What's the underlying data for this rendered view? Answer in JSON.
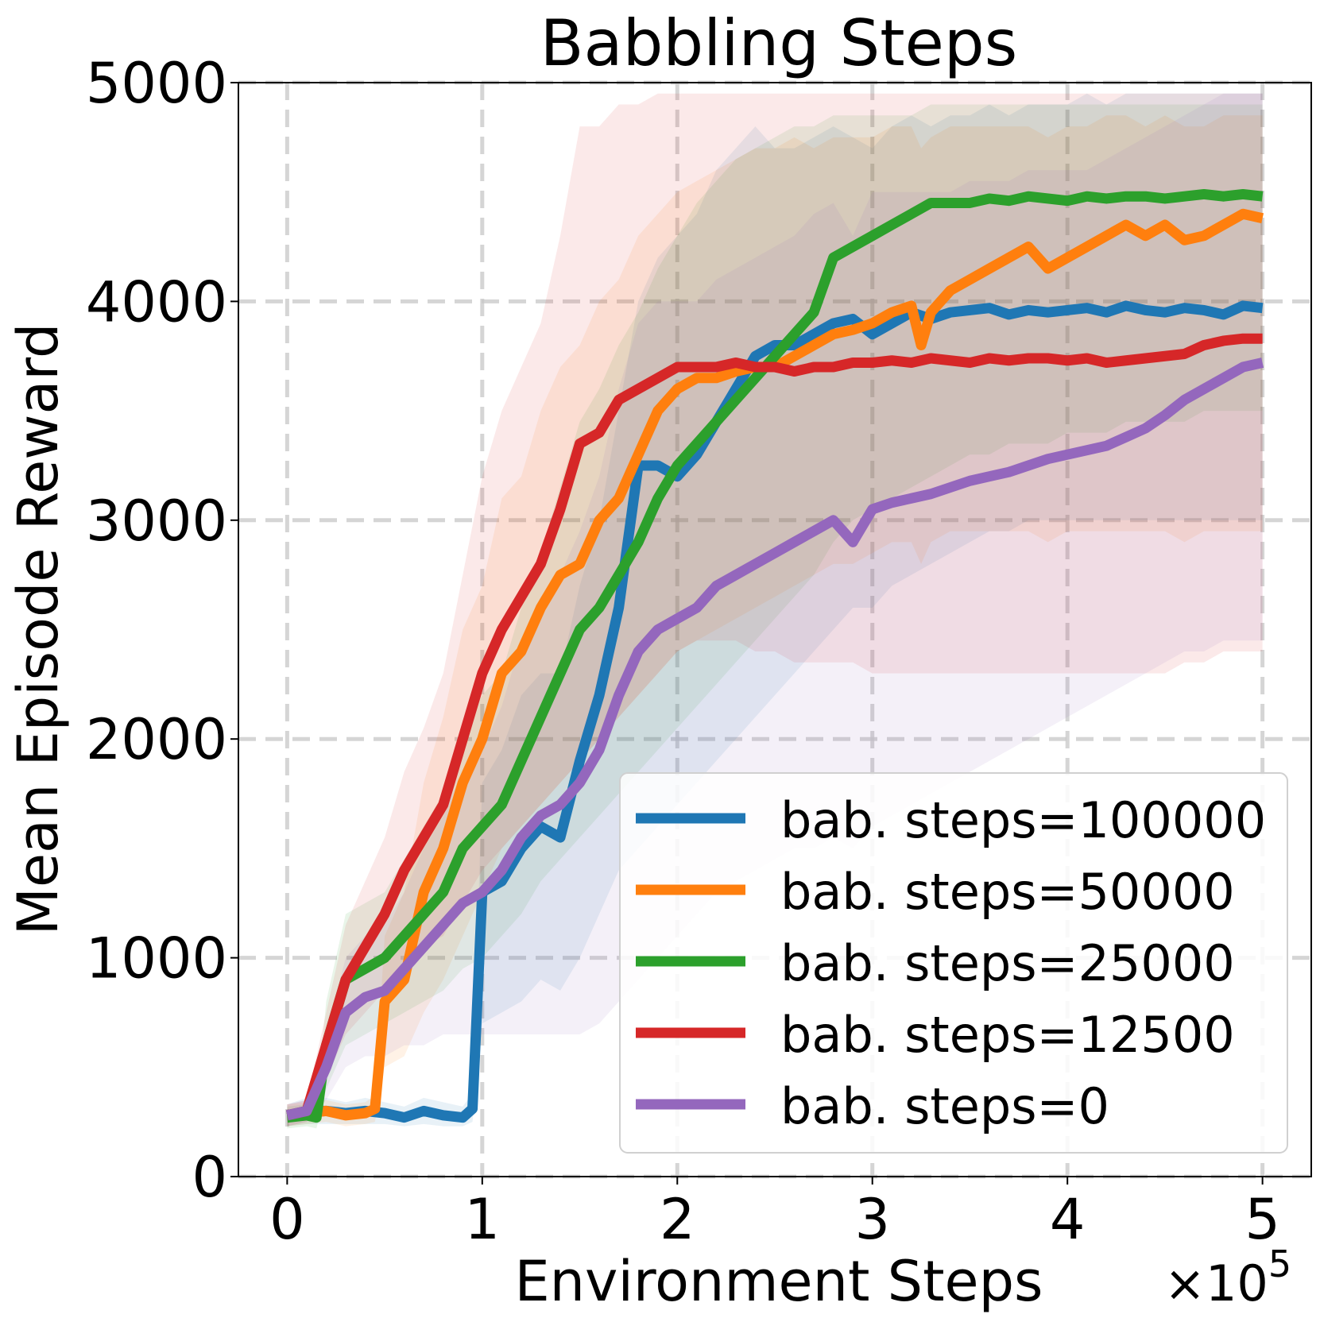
{
  "chart_data": {
    "type": "line",
    "title": "Babbling Steps",
    "xlabel": "Environment Steps",
    "ylabel": "Mean Episode Reward",
    "x_multiplier": "×10",
    "x_multiplier_exp": "5",
    "xlim": [
      -0.25,
      5.25
    ],
    "ylim": [
      0,
      5000
    ],
    "x_ticks": [
      0,
      1,
      2,
      3,
      4,
      5
    ],
    "x_tick_labels": [
      "0",
      "1",
      "2",
      "3",
      "4",
      "5"
    ],
    "y_ticks": [
      0,
      1000,
      2000,
      3000,
      4000,
      5000
    ],
    "y_tick_labels": [
      "0",
      "1000",
      "2000",
      "3000",
      "4000",
      "5000"
    ],
    "grid": true,
    "legend_position": "lower-right",
    "series": [
      {
        "name": "bab. steps=100000",
        "color": "#1f77b4",
        "x": [
          0,
          0.1,
          0.2,
          0.3,
          0.4,
          0.5,
          0.6,
          0.7,
          0.8,
          0.9,
          0.95,
          1.0,
          1.1,
          1.2,
          1.3,
          1.4,
          1.5,
          1.6,
          1.7,
          1.8,
          1.9,
          2.0,
          2.1,
          2.2,
          2.3,
          2.4,
          2.5,
          2.6,
          2.7,
          2.8,
          2.9,
          3.0,
          3.1,
          3.2,
          3.3,
          3.4,
          3.5,
          3.6,
          3.7,
          3.8,
          3.9,
          4.0,
          4.1,
          4.2,
          4.3,
          4.4,
          4.5,
          4.6,
          4.7,
          4.8,
          4.9,
          5.0
        ],
        "y": [
          280,
          300,
          300,
          290,
          300,
          290,
          270,
          300,
          280,
          270,
          310,
          1300,
          1350,
          1500,
          1600,
          1550,
          1900,
          2200,
          2600,
          3250,
          3250,
          3200,
          3300,
          3450,
          3600,
          3750,
          3800,
          3800,
          3850,
          3900,
          3920,
          3850,
          3900,
          3950,
          3920,
          3950,
          3960,
          3970,
          3940,
          3960,
          3950,
          3960,
          3970,
          3950,
          3980,
          3960,
          3950,
          3970,
          3960,
          3940,
          3980,
          3970
        ],
        "lower": [
          230,
          240,
          240,
          240,
          240,
          240,
          230,
          240,
          230,
          230,
          250,
          700,
          750,
          800,
          900,
          850,
          1000,
          1200,
          1400,
          1500,
          1600,
          1700,
          1800,
          1900,
          2000,
          2100,
          2200,
          2300,
          2400,
          2500,
          2600,
          2600,
          2700,
          2750,
          2800,
          2850,
          2900,
          2950,
          2950,
          3000,
          3000,
          3000,
          3000,
          3000,
          3000,
          3000,
          3000,
          3000,
          3000,
          3000,
          3000,
          3000
        ],
        "upper": [
          330,
          360,
          360,
          340,
          360,
          340,
          320,
          360,
          340,
          320,
          380,
          1800,
          1950,
          2200,
          2300,
          2300,
          2700,
          3000,
          3500,
          4000,
          4200,
          4300,
          4400,
          4600,
          4700,
          4800,
          4700,
          4700,
          4750,
          4800,
          4750,
          4700,
          4800,
          4850,
          4800,
          4850,
          4850,
          4900,
          4850,
          4900,
          4900,
          4900,
          4950,
          4900,
          4950,
          4950,
          4950,
          4950,
          4950,
          4950,
          4950,
          4950
        ]
      },
      {
        "name": "bab. steps=50000",
        "color": "#ff7f0e",
        "x": [
          0,
          0.1,
          0.2,
          0.3,
          0.4,
          0.45,
          0.5,
          0.6,
          0.7,
          0.8,
          0.9,
          1.0,
          1.1,
          1.2,
          1.3,
          1.4,
          1.5,
          1.6,
          1.7,
          1.8,
          1.9,
          2.0,
          2.1,
          2.2,
          2.3,
          2.4,
          2.5,
          2.6,
          2.7,
          2.8,
          2.9,
          3.0,
          3.1,
          3.2,
          3.25,
          3.3,
          3.4,
          3.5,
          3.6,
          3.7,
          3.8,
          3.9,
          4.0,
          4.1,
          4.2,
          4.3,
          4.4,
          4.5,
          4.6,
          4.7,
          4.8,
          4.9,
          5.0
        ],
        "y": [
          280,
          290,
          300,
          280,
          290,
          310,
          800,
          900,
          1300,
          1500,
          1800,
          2000,
          2300,
          2400,
          2600,
          2750,
          2800,
          3000,
          3100,
          3300,
          3500,
          3600,
          3650,
          3650,
          3680,
          3700,
          3700,
          3750,
          3800,
          3850,
          3870,
          3900,
          3950,
          3980,
          3800,
          3950,
          4050,
          4100,
          4150,
          4200,
          4250,
          4150,
          4200,
          4250,
          4300,
          4350,
          4300,
          4350,
          4280,
          4300,
          4350,
          4400,
          4380
        ],
        "lower": [
          230,
          240,
          250,
          230,
          240,
          250,
          500,
          550,
          750,
          900,
          1100,
          1300,
          1500,
          1600,
          1700,
          1800,
          1900,
          2000,
          2100,
          2200,
          2300,
          2400,
          2450,
          2500,
          2550,
          2600,
          2650,
          2700,
          2750,
          2800,
          2800,
          2850,
          2900,
          2900,
          2800,
          2900,
          2950,
          2950,
          2950,
          2950,
          2950,
          2900,
          2950,
          2950,
          2950,
          2950,
          2950,
          2950,
          2900,
          2950,
          2950,
          2950,
          2950
        ],
        "upper": [
          330,
          340,
          350,
          330,
          340,
          370,
          1100,
          1300,
          1800,
          2100,
          2500,
          2700,
          3100,
          3200,
          3500,
          3700,
          3800,
          4000,
          4100,
          4300,
          4400,
          4500,
          4550,
          4600,
          4650,
          4700,
          4700,
          4750,
          4700,
          4750,
          4750,
          4750,
          4800,
          4800,
          4700,
          4750,
          4800,
          4800,
          4800,
          4800,
          4800,
          4750,
          4800,
          4800,
          4850,
          4850,
          4800,
          4850,
          4800,
          4800,
          4850,
          4850,
          4850
        ]
      },
      {
        "name": "bab. steps=25000",
        "color": "#2ca02c",
        "x": [
          0,
          0.1,
          0.15,
          0.2,
          0.3,
          0.4,
          0.5,
          0.6,
          0.7,
          0.8,
          0.9,
          1.0,
          1.1,
          1.2,
          1.3,
          1.4,
          1.5,
          1.6,
          1.7,
          1.8,
          1.9,
          2.0,
          2.1,
          2.2,
          2.3,
          2.4,
          2.5,
          2.6,
          2.7,
          2.8,
          2.9,
          3.0,
          3.1,
          3.2,
          3.3,
          3.4,
          3.5,
          3.6,
          3.7,
          3.8,
          3.9,
          4.0,
          4.1,
          4.2,
          4.3,
          4.4,
          4.5,
          4.6,
          4.7,
          4.8,
          4.9,
          5.0
        ],
        "y": [
          270,
          280,
          270,
          600,
          900,
          950,
          1000,
          1100,
          1200,
          1300,
          1500,
          1600,
          1700,
          1900,
          2100,
          2300,
          2500,
          2600,
          2750,
          2900,
          3100,
          3250,
          3350,
          3450,
          3550,
          3650,
          3750,
          3850,
          3950,
          4200,
          4250,
          4300,
          4350,
          4400,
          4450,
          4450,
          4450,
          4470,
          4460,
          4480,
          4470,
          4460,
          4480,
          4470,
          4480,
          4480,
          4470,
          4480,
          4490,
          4480,
          4490,
          4480
        ],
        "lower": [
          220,
          230,
          220,
          400,
          600,
          650,
          700,
          750,
          800,
          850,
          950,
          1000,
          1100,
          1200,
          1350,
          1450,
          1550,
          1650,
          1750,
          1850,
          1950,
          2050,
          2150,
          2250,
          2350,
          2450,
          2550,
          2650,
          2750,
          2900,
          3000,
          3050,
          3100,
          3150,
          3200,
          3250,
          3300,
          3300,
          3350,
          3350,
          3350,
          3400,
          3400,
          3400,
          3450,
          3450,
          3450,
          3450,
          3500,
          3500,
          3500,
          3500
        ],
        "upper": [
          320,
          330,
          320,
          800,
          1200,
          1250,
          1300,
          1450,
          1600,
          1750,
          2050,
          2200,
          2300,
          2600,
          2850,
          3150,
          3450,
          3600,
          3800,
          3950,
          4150,
          4300,
          4450,
          4550,
          4650,
          4700,
          4750,
          4800,
          4800,
          4850,
          4850,
          4850,
          4850,
          4850,
          4900,
          4900,
          4900,
          4900,
          4900,
          4900,
          4900,
          4900,
          4900,
          4900,
          4900,
          4900,
          4900,
          4900,
          4900,
          4900,
          4900,
          4900
        ]
      },
      {
        "name": "bab. steps=12500",
        "color": "#d62728",
        "x": [
          0,
          0.05,
          0.1,
          0.2,
          0.3,
          0.4,
          0.5,
          0.6,
          0.7,
          0.8,
          0.9,
          1.0,
          1.1,
          1.2,
          1.3,
          1.4,
          1.5,
          1.6,
          1.7,
          1.8,
          1.9,
          2.0,
          2.1,
          2.2,
          2.3,
          2.4,
          2.5,
          2.6,
          2.7,
          2.8,
          2.9,
          3.0,
          3.1,
          3.2,
          3.3,
          3.4,
          3.5,
          3.6,
          3.7,
          3.8,
          3.9,
          4.0,
          4.1,
          4.2,
          4.3,
          4.4,
          4.5,
          4.6,
          4.7,
          4.8,
          4.9,
          5.0
        ],
        "y": [
          280,
          290,
          300,
          600,
          900,
          1050,
          1200,
          1400,
          1550,
          1700,
          2000,
          2300,
          2500,
          2650,
          2800,
          3050,
          3350,
          3400,
          3550,
          3600,
          3650,
          3700,
          3700,
          3700,
          3720,
          3700,
          3700,
          3680,
          3700,
          3700,
          3720,
          3720,
          3730,
          3720,
          3740,
          3730,
          3720,
          3740,
          3730,
          3740,
          3740,
          3730,
          3740,
          3720,
          3730,
          3740,
          3750,
          3760,
          3800,
          3820,
          3830,
          3830
        ],
        "lower": [
          230,
          240,
          250,
          450,
          650,
          750,
          850,
          950,
          1050,
          1100,
          1250,
          1400,
          1500,
          1600,
          1700,
          1800,
          1900,
          2000,
          2100,
          2200,
          2300,
          2400,
          2450,
          2450,
          2450,
          2400,
          2400,
          2350,
          2350,
          2350,
          2350,
          2300,
          2300,
          2300,
          2300,
          2300,
          2300,
          2300,
          2300,
          2300,
          2300,
          2300,
          2300,
          2300,
          2300,
          2300,
          2300,
          2350,
          2350,
          2400,
          2400,
          2400
        ],
        "upper": [
          330,
          340,
          350,
          750,
          1150,
          1350,
          1550,
          1850,
          2050,
          2300,
          2750,
          3200,
          3500,
          3700,
          3900,
          4300,
          4800,
          4800,
          4900,
          4900,
          4950,
          4950,
          4950,
          4950,
          4950,
          4950,
          4950,
          4950,
          4950,
          4950,
          4950,
          4950,
          4950,
          4950,
          4950,
          4950,
          4950,
          4950,
          4950,
          4950,
          4950,
          4950,
          4950,
          4950,
          4950,
          4950,
          4950,
          4950,
          4950,
          4950,
          4950,
          4950
        ]
      },
      {
        "name": "bab. steps=0",
        "color": "#9467bd",
        "x": [
          0,
          0.05,
          0.1,
          0.2,
          0.3,
          0.4,
          0.5,
          0.6,
          0.7,
          0.8,
          0.9,
          1.0,
          1.1,
          1.2,
          1.3,
          1.4,
          1.5,
          1.6,
          1.7,
          1.8,
          1.9,
          2.0,
          2.1,
          2.2,
          2.3,
          2.4,
          2.5,
          2.6,
          2.7,
          2.8,
          2.9,
          3.0,
          3.1,
          3.2,
          3.3,
          3.4,
          3.5,
          3.6,
          3.7,
          3.8,
          3.9,
          4.0,
          4.1,
          4.2,
          4.3,
          4.4,
          4.5,
          4.6,
          4.7,
          4.8,
          4.9,
          5.0
        ],
        "y": [
          280,
          290,
          300,
          500,
          750,
          820,
          850,
          950,
          1050,
          1150,
          1250,
          1300,
          1400,
          1550,
          1650,
          1700,
          1800,
          1950,
          2200,
          2400,
          2500,
          2550,
          2600,
          2700,
          2750,
          2800,
          2850,
          2900,
          2950,
          3000,
          2900,
          3050,
          3080,
          3100,
          3120,
          3150,
          3180,
          3200,
          3220,
          3250,
          3280,
          3300,
          3320,
          3340,
          3380,
          3420,
          3480,
          3550,
          3600,
          3650,
          3700,
          3720
        ],
        "lower": [
          230,
          240,
          250,
          350,
          500,
          550,
          550,
          600,
          600,
          650,
          650,
          650,
          650,
          650,
          650,
          650,
          650,
          700,
          800,
          900,
          1000,
          1100,
          1200,
          1300,
          1350,
          1400,
          1450,
          1500,
          1500,
          1550,
          1500,
          1600,
          1650,
          1700,
          1750,
          1800,
          1850,
          1900,
          1950,
          2000,
          2050,
          2100,
          2150,
          2200,
          2250,
          2300,
          2350,
          2400,
          2400,
          2450,
          2450,
          2450
        ],
        "upper": [
          330,
          340,
          350,
          650,
          1000,
          1100,
          1150,
          1300,
          1500,
          1650,
          1850,
          1950,
          2150,
          2450,
          2650,
          2750,
          2950,
          3200,
          3600,
          3900,
          4000,
          4000,
          4000,
          4100,
          4150,
          4200,
          4250,
          4300,
          4400,
          4450,
          4300,
          4500,
          4500,
          4500,
          4500,
          4500,
          4550,
          4550,
          4550,
          4600,
          4600,
          4600,
          4600,
          4650,
          4700,
          4750,
          4800,
          4850,
          4900,
          4950,
          4950,
          4950
        ]
      }
    ]
  }
}
